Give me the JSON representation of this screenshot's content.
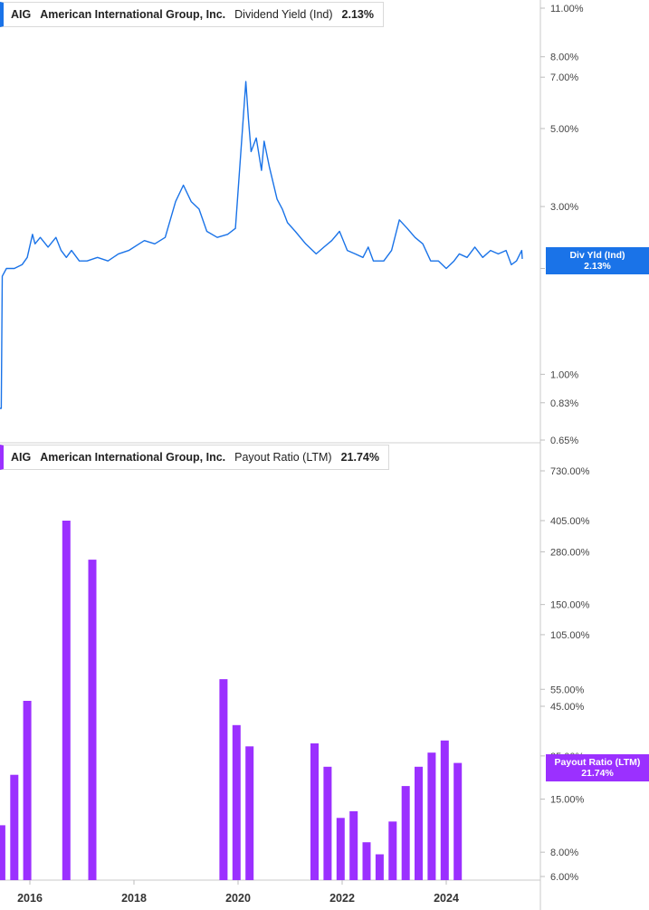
{
  "colors": {
    "yield_line": "#1a73e8",
    "payout_bar": "#9b30ff",
    "grid": "#bdbdbd",
    "axis_text": "#444444"
  },
  "top_legend": {
    "ticker": "AIG",
    "company": "American International Group, Inc.",
    "metric": "Dividend Yield (Ind)",
    "value": "2.13%"
  },
  "bottom_legend": {
    "ticker": "AIG",
    "company": "American International Group, Inc.",
    "metric": "Payout Ratio (LTM)",
    "value": "21.74%"
  },
  "top_tag": {
    "line1": "Div Yld (Ind)",
    "line2": "2.13%"
  },
  "bottom_tag": {
    "line1": "Payout Ratio (LTM)",
    "line2": "21.74%"
  },
  "chart_data": [
    {
      "type": "line",
      "scale": "log",
      "series": [
        {
          "name": "Dividend Yield (Ind)",
          "x": [
            2015.35,
            2015.45,
            2015.47,
            2015.55,
            2015.7,
            2015.85,
            2015.95,
            2016.05,
            2016.1,
            2016.2,
            2016.35,
            2016.5,
            2016.6,
            2016.7,
            2016.8,
            2016.95,
            2017.1,
            2017.3,
            2017.5,
            2017.7,
            2017.9,
            2018.1,
            2018.2,
            2018.4,
            2018.6,
            2018.8,
            2018.95,
            2019.1,
            2019.25,
            2019.4,
            2019.6,
            2019.8,
            2019.95,
            2020.15,
            2020.2,
            2020.25,
            2020.35,
            2020.45,
            2020.5,
            2020.6,
            2020.75,
            2020.85,
            2020.95,
            2021.1,
            2021.3,
            2021.5,
            2021.65,
            2021.8,
            2021.95,
            2022.1,
            2022.25,
            2022.4,
            2022.5,
            2022.6,
            2022.8,
            2022.95,
            2023.1,
            2023.25,
            2023.4,
            2023.55,
            2023.7,
            2023.85,
            2024.0,
            2024.15,
            2024.25,
            2024.4,
            2024.55,
            2024.7,
            2024.85,
            2025.0,
            2025.15,
            2025.25,
            2025.35,
            2025.45,
            2025.55
          ],
          "values": [
            0.8,
            0.8,
            1.9,
            2.0,
            2.0,
            2.05,
            2.15,
            2.5,
            2.35,
            2.45,
            2.3,
            2.45,
            2.25,
            2.15,
            2.25,
            2.1,
            2.1,
            2.15,
            2.1,
            2.2,
            2.25,
            2.35,
            2.4,
            2.35,
            2.45,
            3.1,
            3.45,
            3.1,
            2.95,
            2.55,
            2.45,
            2.5,
            2.6,
            6.8,
            5.3,
            4.3,
            4.7,
            3.8,
            4.6,
            3.9,
            3.15,
            2.95,
            2.7,
            2.55,
            2.35,
            2.2,
            2.3,
            2.4,
            2.55,
            2.25,
            2.2,
            2.15,
            2.3,
            2.1,
            2.1,
            2.25,
            2.75,
            2.6,
            2.45,
            2.35,
            2.1,
            2.1,
            2.0,
            2.1,
            2.2,
            2.15,
            2.3,
            2.15,
            2.25,
            2.2,
            2.25,
            2.05,
            2.1,
            2.25,
            2.13
          ]
        }
      ],
      "y_ticks": [
        "0.65%",
        "0.83%",
        "1.00%",
        "2.00%",
        "3.00%",
        "5.00%",
        "7.00%",
        "8.00%",
        "11.00%"
      ],
      "ylim": [
        0.65,
        11
      ]
    },
    {
      "type": "bar",
      "scale": "log",
      "series": [
        {
          "name": "Payout Ratio (LTM)",
          "x": [
            2015.45,
            2015.7,
            2015.95,
            2016.7,
            2017.2,
            2019.72,
            2019.97,
            2020.22,
            2021.47,
            2021.72,
            2021.97,
            2022.22,
            2022.47,
            2022.72,
            2022.97,
            2023.22,
            2023.47,
            2023.72,
            2023.97,
            2024.22
          ],
          "values": [
            11,
            20,
            48,
            405,
            255,
            62,
            36,
            28,
            29,
            22,
            12,
            13,
            9,
            7.8,
            11.5,
            17.5,
            22,
            26,
            30,
            23
          ]
        }
      ],
      "y_ticks": [
        "6.00%",
        "8.00%",
        "15.00%",
        "25.00%",
        "45.00%",
        "55.00%",
        "105.00%",
        "150.00%",
        "280.00%",
        "405.00%",
        "730.00%"
      ],
      "ylim": [
        6,
        730
      ],
      "x_ticks": [
        "2016",
        "2018",
        "2020",
        "2022",
        "2024"
      ]
    }
  ]
}
